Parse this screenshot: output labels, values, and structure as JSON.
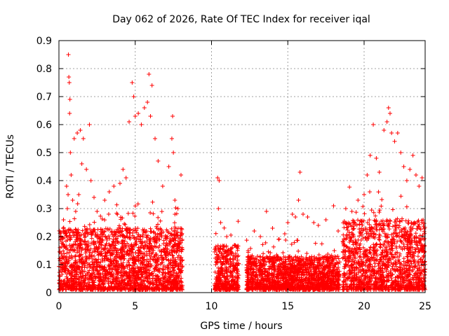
{
  "chart_data": {
    "type": "scatter",
    "title": "Day 062 of 2026, Rate Of TEC Index for receiver iqal",
    "xlabel": "GPS time / hours",
    "ylabel": "ROTI / TECUs",
    "xlim": [
      0,
      24
    ],
    "ylim": [
      0,
      0.9
    ],
    "grid": true,
    "marker": "+",
    "color": "#ff0000",
    "x_ticks": [
      0,
      5,
      10,
      15,
      20,
      25
    ],
    "x_tick_labels": [
      "0",
      "5",
      "10",
      "15",
      "20",
      "25"
    ],
    "y_ticks": [
      0,
      0.1,
      0.2,
      0.3,
      0.4,
      0.5,
      0.6,
      0.7,
      0.8,
      0.9
    ],
    "y_tick_labels": [
      "0",
      "0.1",
      "0.2",
      "0.3",
      "0.4",
      "0.5",
      "0.6",
      "0.7",
      "0.8",
      "0.9"
    ],
    "density_profile": [
      {
        "x": [
          0.0,
          8.1
        ],
        "dense_max": 0.22
      },
      {
        "x": [
          10.2,
          11.8
        ],
        "dense_max": 0.16
      },
      {
        "x": [
          12.3,
          18.4
        ],
        "dense_max": 0.12
      },
      {
        "x": [
          18.6,
          24.0
        ],
        "dense_max": 0.25
      }
    ],
    "series": [
      {
        "name": "ROTI",
        "points": [
          [
            0.3,
            0.26
          ],
          [
            0.5,
            0.38
          ],
          [
            0.55,
            0.3
          ],
          [
            0.6,
            0.35
          ],
          [
            0.62,
            0.85
          ],
          [
            0.65,
            0.77
          ],
          [
            0.68,
            0.75
          ],
          [
            0.7,
            0.64
          ],
          [
            0.72,
            0.69
          ],
          [
            0.75,
            0.5
          ],
          [
            0.8,
            0.42
          ],
          [
            0.9,
            0.33
          ],
          [
            1.0,
            0.55
          ],
          [
            1.1,
            0.29
          ],
          [
            1.2,
            0.57
          ],
          [
            1.3,
            0.35
          ],
          [
            1.4,
            0.58
          ],
          [
            1.5,
            0.46
          ],
          [
            1.6,
            0.55
          ],
          [
            1.8,
            0.44
          ],
          [
            2.0,
            0.6
          ],
          [
            2.1,
            0.4
          ],
          [
            2.3,
            0.34
          ],
          [
            2.5,
            0.29
          ],
          [
            3.0,
            0.33
          ],
          [
            3.3,
            0.36
          ],
          [
            3.6,
            0.38
          ],
          [
            4.0,
            0.39
          ],
          [
            4.2,
            0.44
          ],
          [
            4.4,
            0.41
          ],
          [
            4.6,
            0.61
          ],
          [
            4.8,
            0.75
          ],
          [
            4.9,
            0.7
          ],
          [
            5.0,
            0.63
          ],
          [
            5.2,
            0.64
          ],
          [
            5.4,
            0.6
          ],
          [
            5.6,
            0.66
          ],
          [
            5.8,
            0.68
          ],
          [
            5.9,
            0.78
          ],
          [
            6.0,
            0.63
          ],
          [
            6.1,
            0.74
          ],
          [
            6.3,
            0.55
          ],
          [
            6.5,
            0.47
          ],
          [
            6.8,
            0.38
          ],
          [
            7.2,
            0.45
          ],
          [
            7.4,
            0.55
          ],
          [
            7.45,
            0.63
          ],
          [
            7.5,
            0.5
          ],
          [
            7.6,
            0.33
          ],
          [
            7.8,
            0.3
          ],
          [
            8.0,
            0.42
          ],
          [
            10.4,
            0.41
          ],
          [
            10.5,
            0.4
          ],
          [
            10.45,
            0.3
          ],
          [
            10.6,
            0.25
          ],
          [
            11.0,
            0.2
          ],
          [
            11.5,
            0.17
          ],
          [
            12.4,
            0.15
          ],
          [
            12.8,
            0.22
          ],
          [
            13.2,
            0.2
          ],
          [
            13.6,
            0.29
          ],
          [
            14.0,
            0.23
          ],
          [
            14.4,
            0.19
          ],
          [
            14.8,
            0.21
          ],
          [
            15.0,
            0.25
          ],
          [
            15.3,
            0.28
          ],
          [
            15.5,
            0.27
          ],
          [
            15.7,
            0.33
          ],
          [
            15.8,
            0.43
          ],
          [
            16.0,
            0.28
          ],
          [
            16.3,
            0.27
          ],
          [
            16.7,
            0.25
          ],
          [
            17.0,
            0.24
          ],
          [
            17.5,
            0.26
          ],
          [
            18.0,
            0.31
          ],
          [
            18.3,
            0.22
          ],
          [
            18.8,
            0.3
          ],
          [
            19.2,
            0.29
          ],
          [
            19.6,
            0.33
          ],
          [
            20.0,
            0.35
          ],
          [
            20.2,
            0.42
          ],
          [
            20.4,
            0.49
          ],
          [
            20.6,
            0.6
          ],
          [
            20.8,
            0.48
          ],
          [
            21.0,
            0.43
          ],
          [
            21.3,
            0.58
          ],
          [
            21.5,
            0.61
          ],
          [
            21.6,
            0.66
          ],
          [
            21.7,
            0.64
          ],
          [
            21.8,
            0.57
          ],
          [
            22.0,
            0.54
          ],
          [
            22.2,
            0.57
          ],
          [
            22.4,
            0.5
          ],
          [
            22.6,
            0.45
          ],
          [
            22.8,
            0.4
          ],
          [
            23.0,
            0.44
          ],
          [
            23.2,
            0.49
          ],
          [
            23.4,
            0.42
          ],
          [
            23.6,
            0.38
          ],
          [
            23.8,
            0.41
          ]
        ]
      }
    ]
  }
}
